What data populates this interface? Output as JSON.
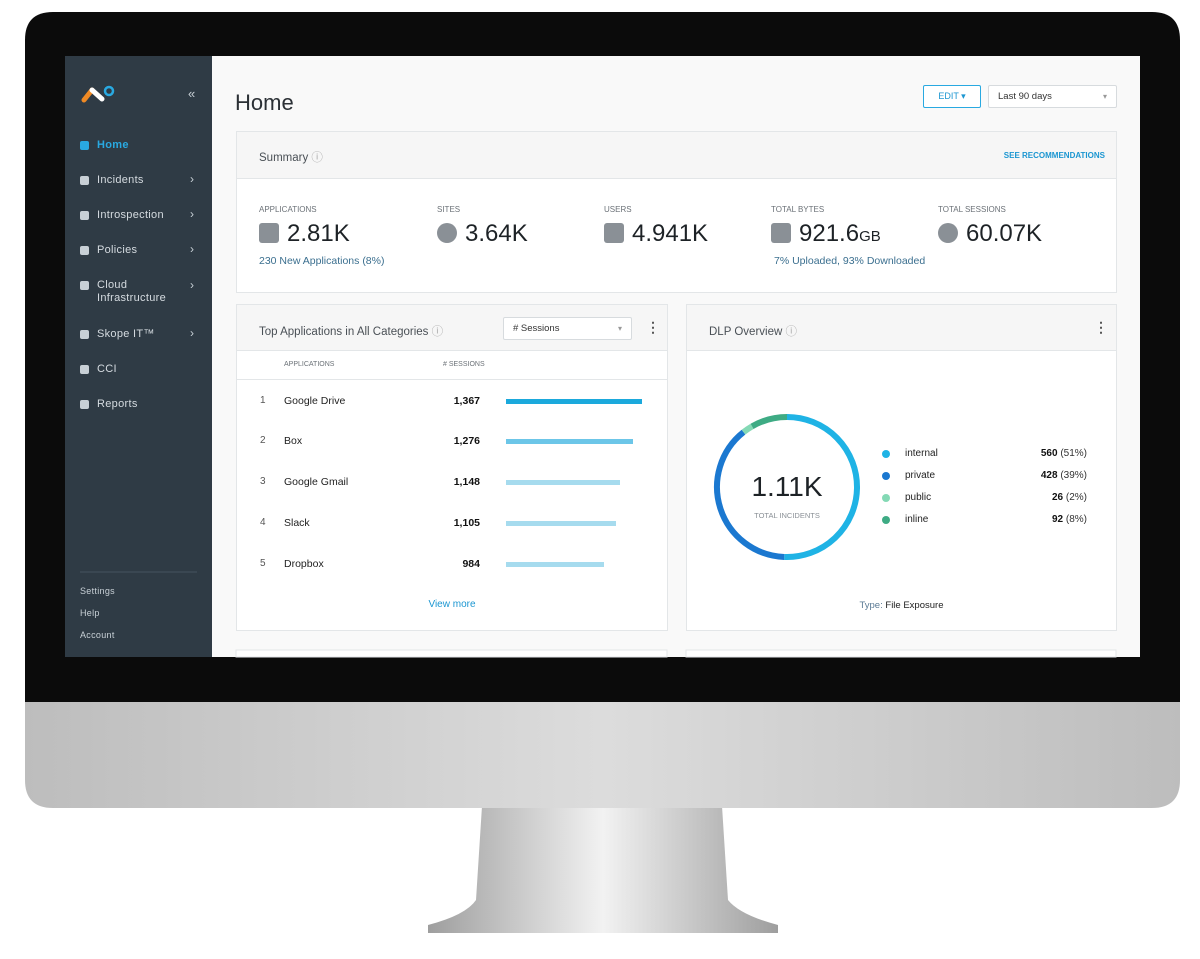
{
  "sidebar": {
    "nav": [
      "Home",
      "Incidents",
      "Introspection",
      "Policies",
      "Cloud Infrastructure",
      "Skope IT™",
      "CCI",
      "Reports"
    ],
    "footer": [
      "Settings",
      "Help",
      "Account"
    ]
  },
  "header": {
    "title": "Home",
    "edit_button": "EDIT",
    "date_range": "Last 90 days"
  },
  "summary": {
    "title": "Summary",
    "link": "SEE RECOMMENDATIONS",
    "metrics": [
      {
        "label": "APPLICATIONS",
        "value": "2.81K",
        "note": "230 New Applications (8%)"
      },
      {
        "label": "SITES",
        "value": "3.64K"
      },
      {
        "label": "USERS",
        "value": "4.941K"
      },
      {
        "label": "TOTAL BYTES",
        "value": "921.6",
        "unit": "GB",
        "note": "7% Uploaded, 93% Downloaded"
      },
      {
        "label": "TOTAL SESSIONS",
        "value": "60.07K"
      }
    ]
  },
  "top_apps": {
    "title": "Top Applications in All Categories",
    "selector": "# Sessions",
    "columns": [
      "APPLICATIONS",
      "# SESSIONS"
    ],
    "rows": [
      {
        "rank": 1,
        "name": "Google Drive",
        "sessions": {
          "value": 1367,
          "label": "1,367"
        }
      },
      {
        "rank": 2,
        "name": "Box",
        "sessions": {
          "value": 1276,
          "label": "1,276"
        }
      },
      {
        "rank": 3,
        "name": "Google Gmail",
        "sessions": {
          "value": 1148,
          "label": "1,148"
        }
      },
      {
        "rank": 4,
        "name": "Slack",
        "sessions": {
          "value": 1105,
          "label": "1,105"
        }
      },
      {
        "rank": 5,
        "name": "Dropbox",
        "sessions": {
          "value": 984,
          "label": "984"
        }
      }
    ],
    "bar_colors": [
      "#1ba9dc",
      "#6cc6e8",
      "#a6dbee",
      "#a6dbee",
      "#a6dbee"
    ],
    "more": "View more"
  },
  "dlp": {
    "title": "DLP Overview",
    "total": "1.11K",
    "total_label": "TOTAL INCIDENTS",
    "items": [
      {
        "name": "internal",
        "count": 560,
        "share": "(51%)",
        "color": "#1fb3e5"
      },
      {
        "name": "private",
        "count": 428,
        "share": "(39%)",
        "color": "#1b78d0"
      },
      {
        "name": "public",
        "count": 26,
        "share": "(2%)",
        "color": "#84d9b5"
      },
      {
        "name": "inline",
        "count": 92,
        "share": "(8%)",
        "color": "#3eab84"
      }
    ],
    "type_label": "Type:",
    "type_value": "File Exposure"
  }
}
